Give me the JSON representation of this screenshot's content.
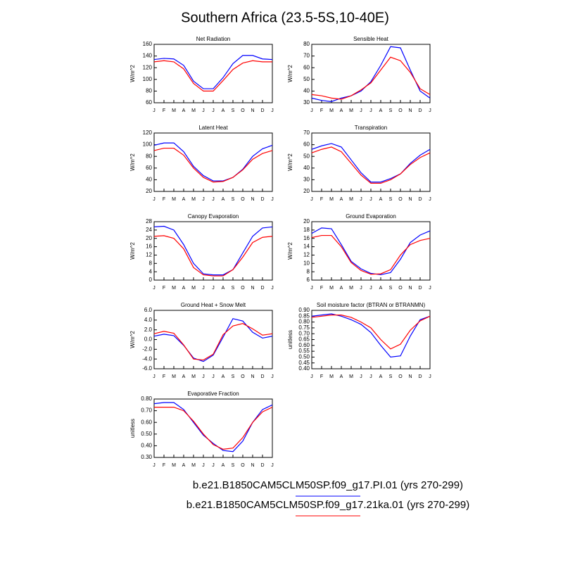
{
  "title": "Southern Africa (23.5-5S,10-40E)",
  "legend": [
    {
      "name": "b.e21.B1850CAM5CLM50SP.f09_g17.PI.01 (yrs 270-299)",
      "color": "#0000ff"
    },
    {
      "name": "b.e21.B1850CAM5CLM50SP.f09_g17.21ka.01 (yrs 270-299)",
      "color": "#ff0000"
    }
  ],
  "chart_data": [
    {
      "type": "line",
      "title": "Net Radiation",
      "ylabel": "W/m^2",
      "categories": [
        "J",
        "F",
        "M",
        "A",
        "M",
        "J",
        "J",
        "A",
        "S",
        "O",
        "N",
        "D",
        "J"
      ],
      "ylim": [
        60,
        160
      ],
      "yticks": [
        60,
        80,
        100,
        120,
        140,
        160
      ],
      "series": [
        {
          "values": [
            134,
            136,
            135,
            124,
            97,
            84,
            84,
            103,
            127,
            141,
            141,
            135,
            134
          ]
        },
        {
          "values": [
            130,
            132,
            130,
            118,
            93,
            80,
            80,
            98,
            117,
            128,
            132,
            130,
            130
          ]
        }
      ]
    },
    {
      "type": "line",
      "title": "Sensible Heat",
      "ylabel": "W/m^2",
      "categories": [
        "J",
        "F",
        "M",
        "A",
        "M",
        "J",
        "J",
        "A",
        "S",
        "O",
        "N",
        "D",
        "J"
      ],
      "ylim": [
        30,
        80
      ],
      "yticks": [
        30,
        40,
        50,
        60,
        70,
        80
      ],
      "series": [
        {
          "values": [
            34,
            32,
            31,
            34,
            36,
            40,
            48,
            62,
            78,
            77,
            58,
            40,
            34
          ]
        },
        {
          "values": [
            37,
            36,
            34,
            33,
            36,
            41,
            47,
            58,
            69,
            66,
            56,
            42,
            37
          ]
        }
      ]
    },
    {
      "type": "line",
      "title": "Latent Heat",
      "ylabel": "W/m^2",
      "categories": [
        "J",
        "F",
        "M",
        "A",
        "M",
        "J",
        "J",
        "A",
        "S",
        "O",
        "N",
        "D",
        "J"
      ],
      "ylim": [
        20,
        120
      ],
      "yticks": [
        20,
        40,
        60,
        80,
        100,
        120
      ],
      "series": [
        {
          "values": [
            99,
            103,
            103,
            88,
            63,
            47,
            38,
            38,
            44,
            58,
            80,
            93,
            99
          ]
        },
        {
          "values": [
            90,
            94,
            94,
            82,
            60,
            44,
            36,
            37,
            44,
            57,
            75,
            85,
            90
          ]
        }
      ]
    },
    {
      "type": "line",
      "title": "Transpiration",
      "ylabel": "W/m^2",
      "categories": [
        "J",
        "F",
        "M",
        "A",
        "M",
        "J",
        "J",
        "A",
        "S",
        "O",
        "N",
        "D",
        "J"
      ],
      "ylim": [
        20,
        70
      ],
      "yticks": [
        20,
        30,
        40,
        50,
        60,
        70
      ],
      "series": [
        {
          "values": [
            56,
            59,
            61,
            58,
            47,
            36,
            28,
            28,
            31,
            35,
            44,
            51,
            56
          ]
        },
        {
          "values": [
            53,
            56,
            58,
            54,
            44,
            34,
            27,
            27,
            30,
            35,
            43,
            49,
            53
          ]
        }
      ]
    },
    {
      "type": "line",
      "title": "Canopy Evaporation",
      "ylabel": "W/m^2",
      "categories": [
        "J",
        "F",
        "M",
        "A",
        "M",
        "J",
        "J",
        "A",
        "S",
        "O",
        "N",
        "D",
        "J"
      ],
      "ylim": [
        0,
        28
      ],
      "yticks": [
        0,
        4,
        8,
        12,
        16,
        20,
        24,
        28
      ],
      "series": [
        {
          "values": [
            25.5,
            25.8,
            24,
            17,
            8,
            3,
            2.5,
            2.5,
            5,
            13,
            21,
            25,
            25.5
          ]
        },
        {
          "values": [
            21,
            21.3,
            20,
            15,
            6,
            2.5,
            2,
            2,
            5,
            11,
            18,
            20.5,
            21
          ]
        }
      ]
    },
    {
      "type": "line",
      "title": "Ground Evaporation",
      "ylabel": "W/m^2",
      "categories": [
        "J",
        "F",
        "M",
        "A",
        "M",
        "J",
        "J",
        "A",
        "S",
        "O",
        "N",
        "D",
        "J"
      ],
      "ylim": [
        6,
        20
      ],
      "yticks": [
        6,
        8,
        10,
        12,
        14,
        16,
        18,
        20
      ],
      "series": [
        {
          "values": [
            17.2,
            18.5,
            18.3,
            14.5,
            10.5,
            8.7,
            7.6,
            7.3,
            7.8,
            11,
            15,
            16.8,
            17.8
          ]
        },
        {
          "values": [
            16.2,
            16.7,
            16.7,
            14,
            10.2,
            8.3,
            7.4,
            7.5,
            8.5,
            12,
            14.5,
            15.5,
            16
          ]
        }
      ]
    },
    {
      "type": "line",
      "title": "Ground Heat + Snow Melt",
      "ylabel": "W/m^2",
      "categories": [
        "J",
        "F",
        "M",
        "A",
        "M",
        "J",
        "J",
        "A",
        "S",
        "O",
        "N",
        "D",
        "J"
      ],
      "ylim": [
        -6,
        6
      ],
      "yticks": [
        {
          "value": -6,
          "label": "-6.0"
        },
        {
          "value": -4,
          "label": "-4.0"
        },
        {
          "value": -2,
          "label": "-2.0"
        },
        {
          "value": 0,
          "label": "0.0"
        },
        {
          "value": 2,
          "label": "2.0"
        },
        {
          "value": 4,
          "label": "4.0"
        },
        {
          "value": 6,
          "label": "6.0"
        }
      ],
      "series": [
        {
          "values": [
            0.7,
            1.1,
            0.8,
            -1.2,
            -3.8,
            -4.5,
            -3.2,
            0.5,
            4.3,
            3.8,
            1.5,
            0.3,
            0.7
          ]
        },
        {
          "values": [
            1.2,
            1.7,
            1.3,
            -1.1,
            -4.0,
            -4.2,
            -3.0,
            1.0,
            2.8,
            3.3,
            2.2,
            0.9,
            1.2
          ]
        }
      ]
    },
    {
      "type": "line",
      "title": "Soil moisture factor (BTRAN or BTRANMN)",
      "ylabel": "unitless",
      "categories": [
        "J",
        "F",
        "M",
        "A",
        "M",
        "J",
        "J",
        "A",
        "S",
        "O",
        "N",
        "D",
        "J"
      ],
      "ylim": [
        0.4,
        0.9
      ],
      "yticks": [
        {
          "value": 0.4,
          "label": "0.40"
        },
        {
          "value": 0.45,
          "label": "0.45"
        },
        {
          "value": 0.5,
          "label": "0.50"
        },
        {
          "value": 0.55,
          "label": "0.55"
        },
        {
          "value": 0.6,
          "label": "0.60"
        },
        {
          "value": 0.65,
          "label": "0.65"
        },
        {
          "value": 0.7,
          "label": "0.70"
        },
        {
          "value": 0.75,
          "label": "0.75"
        },
        {
          "value": 0.8,
          "label": "0.80"
        },
        {
          "value": 0.85,
          "label": "0.85"
        },
        {
          "value": 0.9,
          "label": "0.90"
        }
      ],
      "series": [
        {
          "values": [
            0.85,
            0.86,
            0.87,
            0.85,
            0.82,
            0.78,
            0.71,
            0.6,
            0.5,
            0.51,
            0.68,
            0.82,
            0.85
          ]
        },
        {
          "values": [
            0.84,
            0.85,
            0.86,
            0.86,
            0.84,
            0.8,
            0.75,
            0.65,
            0.57,
            0.61,
            0.73,
            0.81,
            0.85
          ]
        }
      ]
    },
    {
      "type": "line",
      "title": "Evaporative Fraction",
      "ylabel": "unitless",
      "categories": [
        "J",
        "F",
        "M",
        "A",
        "M",
        "J",
        "J",
        "A",
        "S",
        "O",
        "N",
        "D",
        "J"
      ],
      "ylim": [
        0.3,
        0.8
      ],
      "yticks": [
        {
          "value": 0.3,
          "label": "0.30"
        },
        {
          "value": 0.4,
          "label": "0.40"
        },
        {
          "value": 0.5,
          "label": "0.50"
        },
        {
          "value": 0.6,
          "label": "0.60"
        },
        {
          "value": 0.7,
          "label": "0.70"
        },
        {
          "value": 0.8,
          "label": "0.80"
        }
      ],
      "series": [
        {
          "values": [
            0.76,
            0.77,
            0.77,
            0.71,
            0.6,
            0.49,
            0.42,
            0.36,
            0.35,
            0.44,
            0.6,
            0.71,
            0.75
          ]
        },
        {
          "values": [
            0.73,
            0.73,
            0.73,
            0.7,
            0.61,
            0.5,
            0.41,
            0.37,
            0.38,
            0.47,
            0.6,
            0.69,
            0.73
          ]
        }
      ]
    }
  ]
}
